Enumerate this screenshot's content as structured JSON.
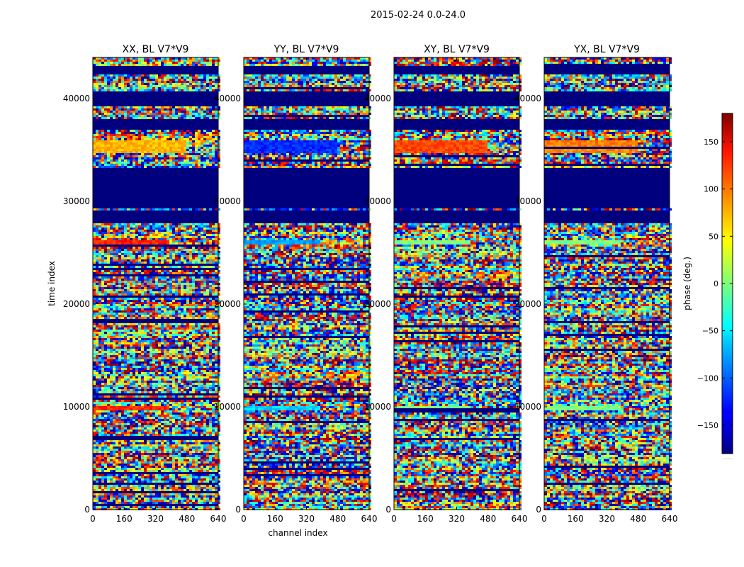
{
  "chart_data": {
    "type": "heatmap",
    "suptitle": "2015-02-24 0.0-24.0",
    "panels": [
      {
        "title": "XX, BL V7*V9",
        "ylabel": "time index",
        "xlabel": ""
      },
      {
        "title": "YY, BL V7*V9",
        "ylabel": "",
        "xlabel": "channel index"
      },
      {
        "title": "XY, BL V7*V9",
        "ylabel": "",
        "xlabel": ""
      },
      {
        "title": "YX, BL V7*V9",
        "ylabel": "",
        "xlabel": ""
      }
    ],
    "x_range": [
      0,
      640
    ],
    "y_range": [
      0,
      44000
    ],
    "x_ticks": [
      0,
      160,
      320,
      480,
      640
    ],
    "x_tick_labels": [
      "0",
      "160",
      "320",
      "480",
      "640"
    ],
    "y_ticks": [
      0,
      10000,
      20000,
      30000,
      40000
    ],
    "y_tick_labels": [
      "0",
      "10000",
      "20000",
      "30000",
      "40000"
    ],
    "colorbar": {
      "label": "phase (deg.)",
      "range": [
        -180,
        180
      ],
      "ticks": [
        -150,
        -100,
        -50,
        0,
        50,
        100,
        150
      ],
      "tick_labels": [
        "−150",
        "−100",
        "−50",
        "0",
        "50",
        "100",
        "150"
      ],
      "colormap": "jet",
      "footnote": "......"
    },
    "flagged_time_ranges": [
      [
        29400,
        33200
      ],
      [
        27800,
        29200
      ],
      [
        39200,
        40600
      ],
      [
        42300,
        43200
      ],
      [
        37000,
        38100
      ]
    ],
    "coherent_phase_bands": [
      {
        "time_range": [
          34600,
          35900
        ],
        "channel_range": [
          0,
          480
        ],
        "phase_deg": {
          "XX": 70,
          "YY": -120,
          "XY": 110,
          "YX": 90
        }
      },
      {
        "time_range": [
          9600,
          10000
        ],
        "channel_range": [
          0,
          390
        ],
        "phase_deg": {
          "XX": 120,
          "YY": -60,
          "XY": 0,
          "YX": 0
        }
      },
      {
        "time_range": [
          25800,
          26200
        ],
        "channel_range": [
          0,
          390
        ],
        "phase_deg": {
          "XX": 125,
          "YY": -80,
          "XY": 0,
          "YX": 0
        }
      }
    ]
  }
}
